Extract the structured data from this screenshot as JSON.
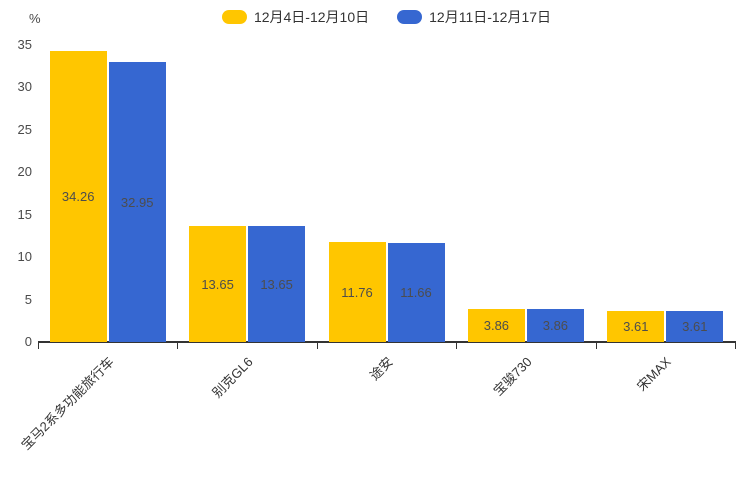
{
  "chart": {
    "unit_label": "%",
    "axis_color": "#333333",
    "tick_label_color": "#4a4a4a",
    "value_label_color": "#4d4d4d",
    "background_color": "#ffffff"
  },
  "chart_data": {
    "type": "bar",
    "categories": [
      "宝马2系多功能旅行车",
      "别克GL6",
      "途安",
      "宝骏730",
      "宋MAX"
    ],
    "series": [
      {
        "name": "12月4日-12月10日",
        "color": "#ffc600",
        "values": [
          34.26,
          13.65,
          11.76,
          3.86,
          3.61
        ]
      },
      {
        "name": "12月11日-12月17日",
        "color": "#3667d1",
        "values": [
          32.95,
          13.65,
          11.66,
          3.86,
          3.61
        ]
      }
    ],
    "title": "",
    "xlabel": "",
    "ylabel": "%",
    "ylim": [
      0,
      35
    ],
    "yticks": [
      0,
      5,
      10,
      15,
      20,
      25,
      30,
      35
    ],
    "grid": false,
    "legend_position": "top-center",
    "value_labels": "inside-center",
    "x_tick_label_rotation_deg": 45
  }
}
